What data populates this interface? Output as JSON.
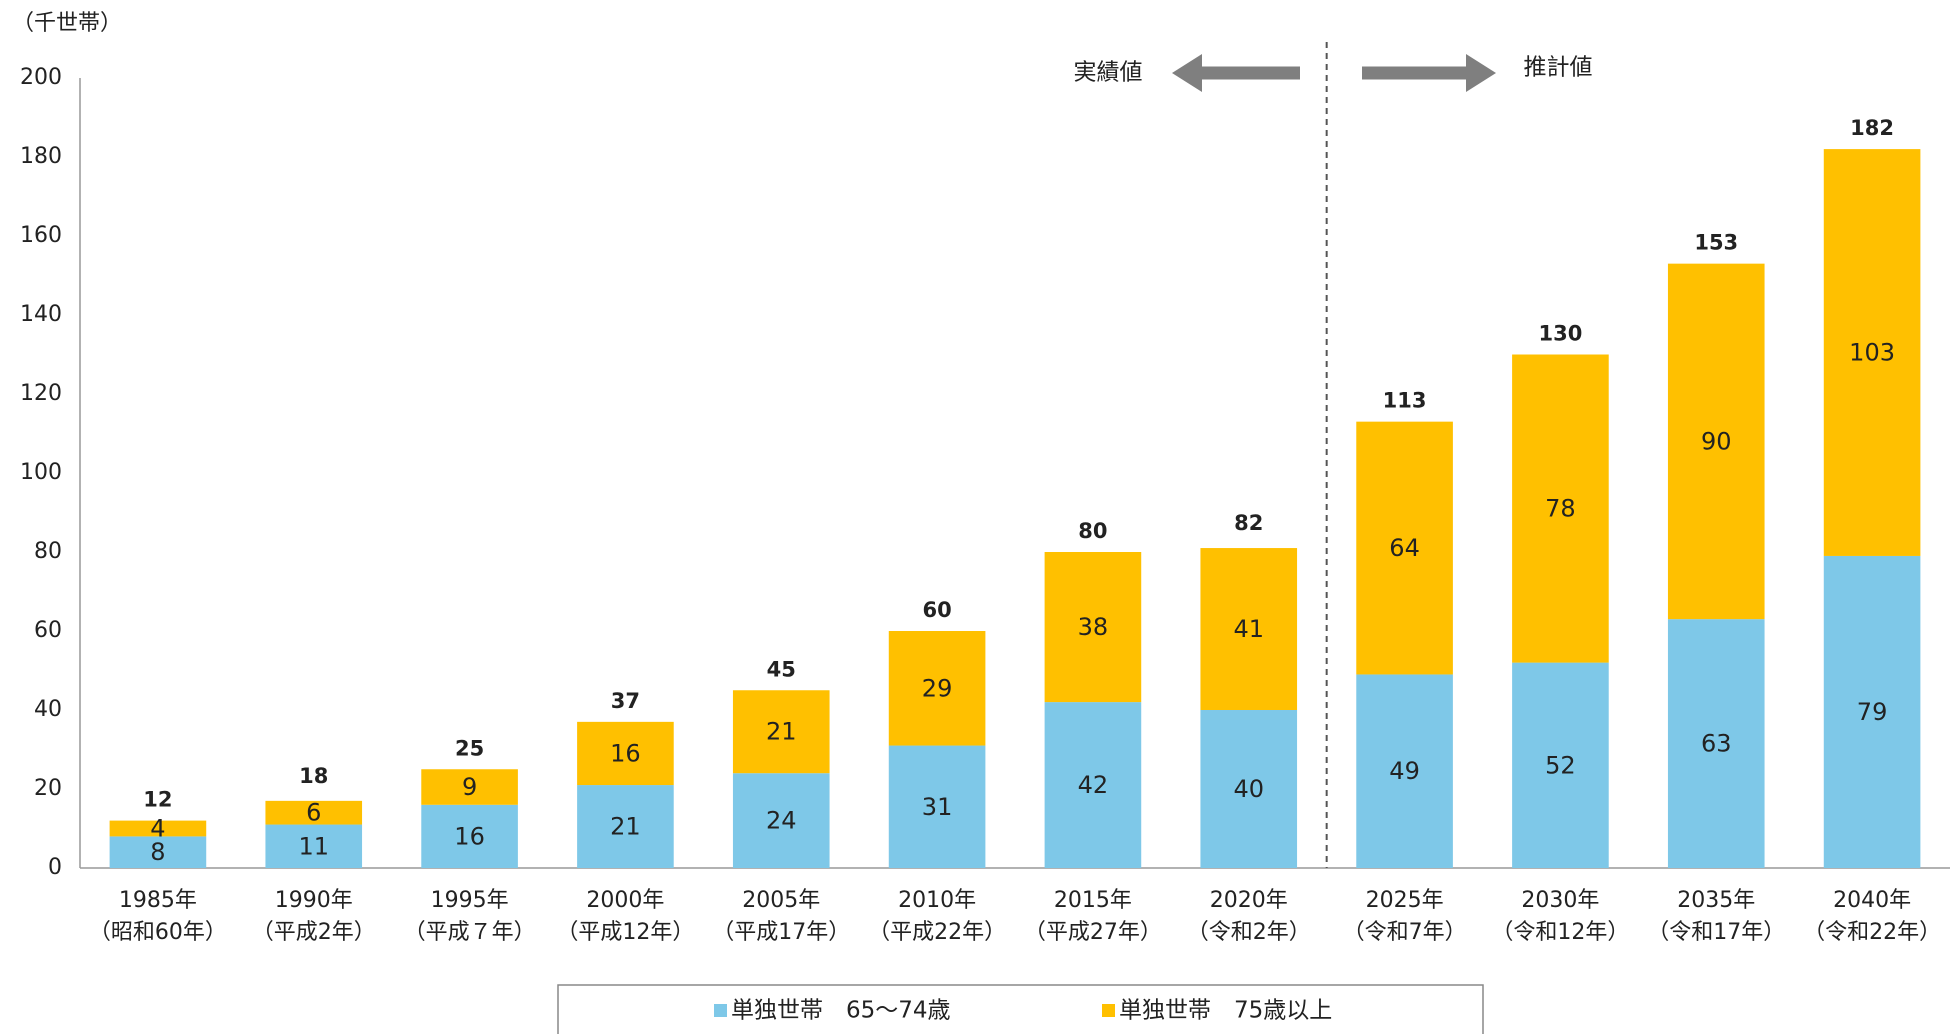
{
  "chart_data": {
    "type": "bar",
    "stacked": true,
    "unit_label": "（千世帯）",
    "ylim": [
      0,
      200
    ],
    "yticks": [
      0,
      20,
      40,
      60,
      80,
      100,
      120,
      140,
      160,
      180,
      200
    ],
    "categories": [
      [
        "1985年",
        "（昭和60年）"
      ],
      [
        "1990年",
        "（平成2年）"
      ],
      [
        "1995年",
        "（平成７年）"
      ],
      [
        "2000年",
        "（平成12年）"
      ],
      [
        "2005年",
        "（平成17年）"
      ],
      [
        "2010年",
        "（平成22年）"
      ],
      [
        "2015年",
        "（平成27年）"
      ],
      [
        "2020年",
        "（令和2年）"
      ],
      [
        "2025年",
        "（令和7年）"
      ],
      [
        "2030年",
        "（令和12年）"
      ],
      [
        "2035年",
        "（令和17年）"
      ],
      [
        "2040年",
        "（令和22年）"
      ]
    ],
    "series": [
      {
        "name": "単独世帯　65～74歳",
        "color": "#7ec8e8",
        "values": [
          8,
          11,
          16,
          21,
          24,
          31,
          42,
          40,
          49,
          52,
          63,
          79
        ]
      },
      {
        "name": "単独世帯　75歳以上",
        "color": "#ffc000",
        "values": [
          4,
          6,
          9,
          16,
          21,
          29,
          38,
          41,
          64,
          78,
          90,
          103
        ]
      }
    ],
    "totals": [
      12,
      18,
      25,
      37,
      45,
      60,
      80,
      82,
      113,
      130,
      153,
      182
    ],
    "regions": {
      "actual_label": "実績値",
      "projected_label": "推計値"
    },
    "legend_position": "bottom"
  }
}
